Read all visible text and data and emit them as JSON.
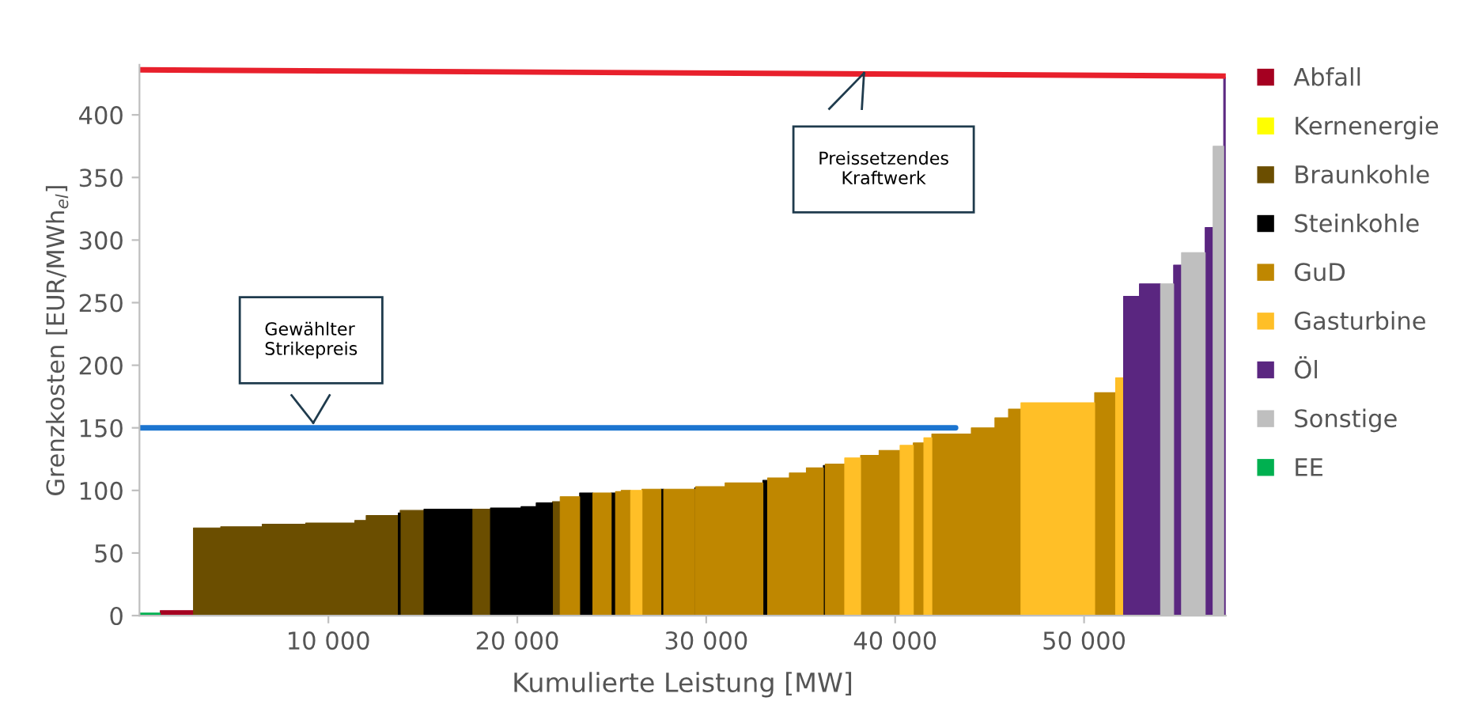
{
  "chart_data": {
    "type": "area",
    "ylabel": "Grenzkosten [EUR/MWh$_{el}$]",
    "xlabel": "Kumulierte Leistung [MW]",
    "xlim": [
      0,
      57500
    ],
    "xticks": [
      {
        "value": 10000,
        "label": "10 000"
      },
      {
        "value": 20000,
        "label": "20 000"
      },
      {
        "value": 30000,
        "label": "30 000"
      },
      {
        "value": 40000,
        "label": "40 000"
      },
      {
        "value": 50000,
        "label": "50 000"
      }
    ],
    "ylim": [
      0,
      440
    ],
    "yticks": [
      0,
      50,
      100,
      150,
      200,
      250,
      300,
      350,
      400
    ],
    "grid": false,
    "legend": "right",
    "series": [
      {
        "name": "Abfall",
        "color": "#a50021",
        "x": [
          1100,
          2860
        ],
        "values": [
          4,
          4
        ]
      },
      {
        "name": "Kernenergie",
        "color": "#ffff00"
      },
      {
        "name": "Braunkohle",
        "color": "#6b4e00",
        "x": [
          2860,
          4300,
          4300,
          6500,
          6500,
          8800,
          8800,
          11400,
          11400,
          12000,
          12000,
          13700,
          null,
          13800,
          15060,
          null,
          17600,
          18580,
          null,
          21860,
          22270,
          null
        ],
        "values": [
          70,
          70,
          71,
          71,
          73,
          73,
          74,
          74,
          76,
          76,
          80,
          80,
          null,
          84,
          84,
          null,
          85,
          85,
          null,
          91,
          91,
          null
        ]
      },
      {
        "name": "Steinkohle",
        "color": "#000000",
        "x": [
          13700,
          13800,
          null,
          15060,
          17600,
          null,
          18580,
          20200,
          20200,
          21000,
          21000,
          21860,
          null,
          23300,
          24000,
          null,
          24970,
          25200,
          null,
          27600,
          27750,
          null,
          29390,
          29440,
          null,
          33000,
          33250,
          null,
          36200,
          36300
        ],
        "values": [
          82,
          82,
          null,
          85,
          85,
          null,
          86,
          86,
          87,
          87,
          90,
          90,
          null,
          98,
          98,
          null,
          98,
          98,
          null,
          101,
          101,
          null,
          102,
          102,
          null,
          108,
          108,
          null,
          120,
          120
        ]
      },
      {
        "name": "GuD",
        "color": "#bf8700",
        "x": [
          22270,
          23300,
          null,
          24000,
          24970,
          null,
          25200,
          25500,
          25500,
          26000,
          null,
          26600,
          27600,
          null,
          27750,
          29390,
          null,
          29440,
          31000,
          31000,
          33000,
          null,
          33250,
          34400,
          34400,
          35300,
          35300,
          36200,
          null,
          36300,
          37330,
          null,
          38170,
          39150,
          39150,
          40260,
          null,
          40960,
          41520,
          null,
          41940,
          44030,
          44030,
          45280,
          45280,
          46000,
          46000,
          46660,
          null,
          50560,
          51670
        ],
        "values": [
          95,
          95,
          null,
          98,
          98,
          null,
          99,
          99,
          100,
          100,
          null,
          101,
          101,
          null,
          101,
          101,
          null,
          103,
          103,
          106,
          106,
          null,
          110,
          110,
          114,
          114,
          118,
          118,
          null,
          121,
          121,
          null,
          128,
          128,
          132,
          132,
          null,
          138,
          138,
          null,
          145,
          145,
          150,
          150,
          158,
          158,
          165,
          165,
          null,
          178,
          178
        ]
      },
      {
        "name": "Gasturbine",
        "color": "#ffbf27",
        "x": [
          26000,
          26600,
          null,
          37330,
          38170,
          null,
          40260,
          40960,
          null,
          41520,
          41940,
          null,
          46660,
          50560,
          null,
          51670,
          52090
        ],
        "values": [
          100,
          100,
          null,
          126,
          126,
          null,
          136,
          136,
          null,
          142,
          142,
          null,
          170,
          170,
          null,
          190,
          190
        ]
      },
      {
        "name": "Öl",
        "color": "#5a2680",
        "x": [
          52090,
          52930,
          52930,
          54050,
          null,
          54740,
          55160,
          null,
          56410,
          56830,
          null,
          57390,
          57480
        ],
        "values": [
          255,
          255,
          265,
          265,
          null,
          280,
          280,
          null,
          310,
          310,
          null,
          430,
          430
        ]
      },
      {
        "name": "Sonstige",
        "color": "#bfbfbf",
        "x": [
          54050,
          54740,
          null,
          55160,
          56410,
          null,
          56830,
          57390
        ],
        "values": [
          265,
          265,
          null,
          290,
          290,
          null,
          375,
          375
        ]
      },
      {
        "name": "EE",
        "color": "#00b050",
        "x": [
          0,
          1100
        ],
        "values": [
          2,
          2
        ]
      },
      {
        "type": "line",
        "color": "#e8202c",
        "x": [
          0,
          57480
        ],
        "values": [
          436,
          431
        ]
      },
      {
        "type": "line",
        "color": "#1c75d0",
        "x": [
          0,
          43200
        ],
        "values": [
          150,
          150
        ]
      }
    ],
    "annotations": [
      "Gewählter\nStrikepreis",
      "Preissetzendes\nKraftwerk"
    ]
  }
}
